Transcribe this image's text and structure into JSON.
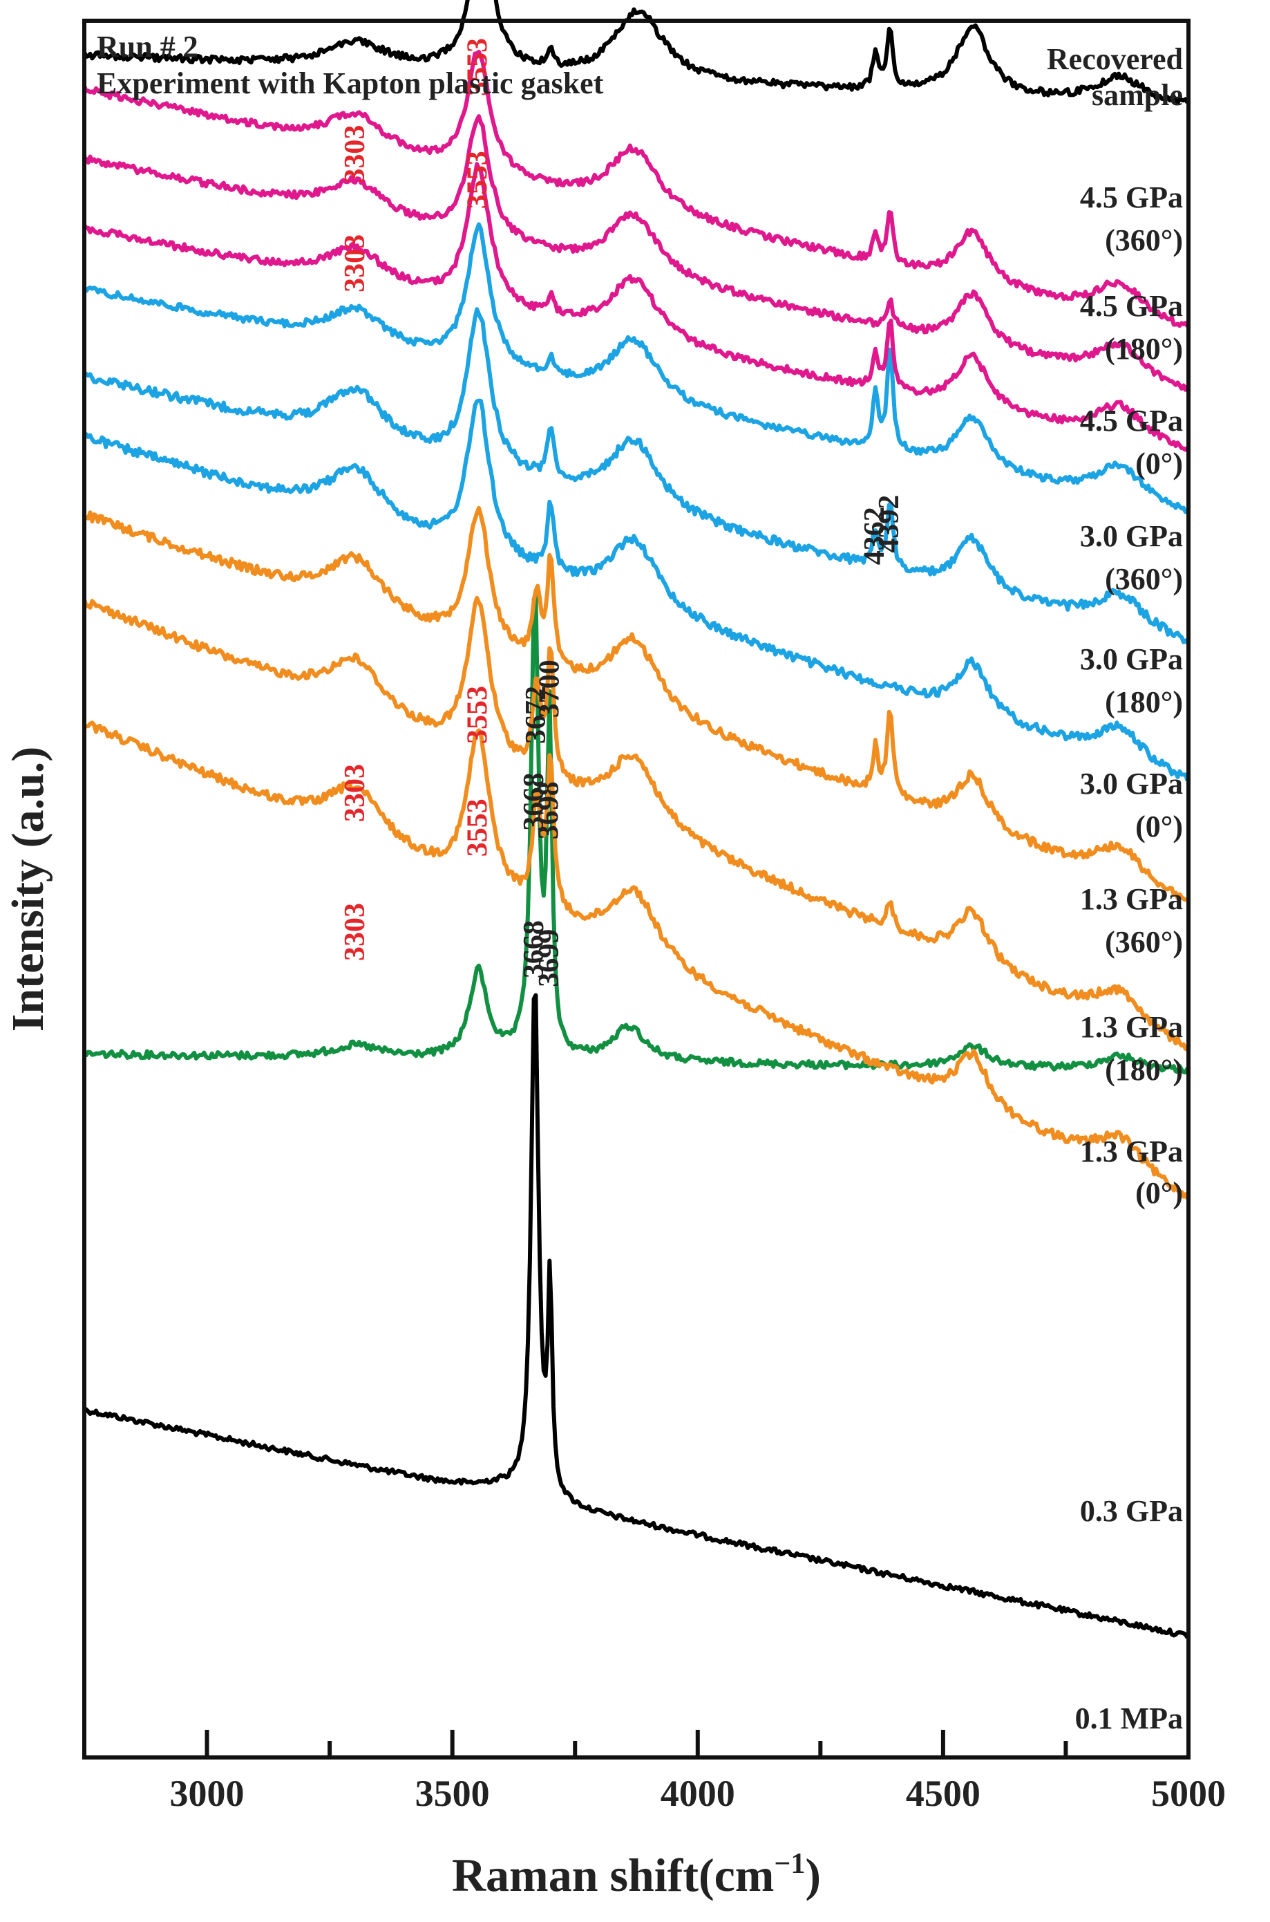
{
  "chart_data": {
    "type": "line",
    "title": "Run # 2",
    "subtitle": "Experiment with Kapton plastic gasket",
    "xlabel": "Raman shift(cm",
    "xlabel_sup": "−1",
    "xlabel_end": ")",
    "ylabel": "Intensity (a.u.)",
    "xlim": [
      2750,
      5000
    ],
    "xticks": [
      3000,
      3500,
      4000,
      4500,
      5000
    ],
    "colors": {
      "black": "#000000",
      "green": "#129042",
      "orange": "#f18d1e",
      "blue": "#1ba3e3",
      "magenta": "#e0188e",
      "red_label": "#e4262a",
      "black_label": "#222222"
    },
    "series": [
      {
        "name": "0.1 MPa",
        "label_lines": [
          "0.1 MPa"
        ],
        "color": "black",
        "start": 0.8,
        "end": 0.93,
        "base": 0.48,
        "noise": 0.003,
        "peaks": [
          [
            3668,
            0.3,
            9
          ],
          [
            3699,
            0.12,
            5
          ],
          [
            3600,
            0.005,
            60
          ]
        ]
      },
      {
        "name": "0.3 GPa",
        "label_lines": [
          "0.3 GPa"
        ],
        "color": "green",
        "start": 0.595,
        "end": 0.605,
        "base": 0.575,
        "noise": 0.004,
        "peaks": [
          [
            3553,
            0.05,
            22
          ],
          [
            3668,
            0.27,
            9
          ],
          [
            3698,
            0.19,
            6
          ],
          [
            3860,
            0.02,
            40
          ],
          [
            3303,
            0.007,
            60
          ],
          [
            4560,
            0.012,
            40
          ],
          [
            4860,
            0.008,
            50
          ]
        ]
      },
      {
        "name": "1.3 GPa (0°)",
        "label_lines": [
          "1.3 GPa",
          "(0°)"
        ],
        "color": "orange",
        "start": 0.405,
        "end": 0.68,
        "base": 0.455,
        "noise": 0.005,
        "peaks": [
          [
            3553,
            0.09,
            28
          ],
          [
            3672,
            0.06,
            10
          ],
          [
            3700,
            0.085,
            8
          ],
          [
            3303,
            0.03,
            70
          ],
          [
            3870,
            0.04,
            60
          ],
          [
            4560,
            0.03,
            40
          ],
          [
            4860,
            0.02,
            60
          ]
        ]
      },
      {
        "name": "1.3 GPa (180°)",
        "label_lines": [
          "1.3 GPa",
          "(180°)"
        ],
        "color": "orange",
        "start": 0.335,
        "end": 0.595,
        "base": 0.38,
        "noise": 0.005,
        "peaks": [
          [
            3553,
            0.09,
            28
          ],
          [
            3672,
            0.05,
            10
          ],
          [
            3700,
            0.07,
            8
          ],
          [
            3303,
            0.03,
            70
          ],
          [
            3870,
            0.04,
            60
          ],
          [
            4560,
            0.03,
            40
          ],
          [
            4860,
            0.02,
            60
          ],
          [
            4392,
            0.015,
            8
          ]
        ]
      },
      {
        "name": "1.3 GPa (360°)",
        "label_lines": [
          "1.3 GPa",
          "(360°)"
        ],
        "color": "orange",
        "start": 0.285,
        "end": 0.51,
        "base": 0.33,
        "noise": 0.005,
        "peaks": [
          [
            3553,
            0.08,
            28
          ],
          [
            3672,
            0.04,
            10
          ],
          [
            3700,
            0.06,
            8
          ],
          [
            3303,
            0.03,
            70
          ],
          [
            3870,
            0.04,
            60
          ],
          [
            4362,
            0.025,
            7
          ],
          [
            4392,
            0.05,
            7
          ],
          [
            4560,
            0.03,
            40
          ],
          [
            4860,
            0.02,
            60
          ]
        ]
      },
      {
        "name": "3.0 GPa (0°)",
        "label_lines": [
          "3.0 GPa",
          "(0°)"
        ],
        "color": "blue",
        "start": 0.24,
        "end": 0.44,
        "base": 0.28,
        "noise": 0.005,
        "peaks": [
          [
            3553,
            0.09,
            28
          ],
          [
            3700,
            0.04,
            8
          ],
          [
            3303,
            0.03,
            70
          ],
          [
            3870,
            0.04,
            60
          ],
          [
            4560,
            0.03,
            40
          ],
          [
            4860,
            0.02,
            60
          ]
        ]
      },
      {
        "name": "3.0 GPa (180°)",
        "label_lines": [
          "3.0 GPa",
          "(180°)"
        ],
        "color": "blue",
        "start": 0.205,
        "end": 0.36,
        "base": 0.245,
        "noise": 0.005,
        "peaks": [
          [
            3553,
            0.09,
            28
          ],
          [
            3700,
            0.03,
            8
          ],
          [
            3303,
            0.03,
            70
          ],
          [
            3870,
            0.04,
            60
          ],
          [
            4362,
            0.02,
            7
          ],
          [
            4392,
            0.04,
            7
          ],
          [
            4560,
            0.03,
            40
          ],
          [
            4860,
            0.02,
            60
          ]
        ]
      },
      {
        "name": "3.0 GPa (360°)",
        "label_lines": [
          "3.0 GPa",
          "(360°)"
        ],
        "color": "blue",
        "start": 0.155,
        "end": 0.285,
        "base": 0.195,
        "noise": 0.004,
        "peaks": [
          [
            3553,
            0.08,
            28
          ],
          [
            3700,
            0.01,
            8
          ],
          [
            3303,
            0.02,
            70
          ],
          [
            3870,
            0.035,
            60
          ],
          [
            4362,
            0.03,
            7
          ],
          [
            4392,
            0.06,
            7
          ],
          [
            4560,
            0.03,
            40
          ],
          [
            4860,
            0.02,
            60
          ]
        ]
      },
      {
        "name": "4.5 GPa (0°)",
        "label_lines": [
          "4.5 GPa",
          "(0°)"
        ],
        "color": "magenta",
        "start": 0.12,
        "end": 0.25,
        "base": 0.155,
        "noise": 0.004,
        "peaks": [
          [
            3553,
            0.08,
            28
          ],
          [
            3700,
            0.01,
            8
          ],
          [
            3303,
            0.02,
            70
          ],
          [
            3870,
            0.035,
            60
          ],
          [
            4362,
            0.02,
            7
          ],
          [
            4392,
            0.04,
            7
          ],
          [
            4560,
            0.03,
            40
          ],
          [
            4860,
            0.02,
            60
          ]
        ]
      },
      {
        "name": "4.5 GPa (180°)",
        "label_lines": [
          "4.5 GPa",
          "(180°)"
        ],
        "color": "magenta",
        "start": 0.08,
        "end": 0.215,
        "base": 0.115,
        "noise": 0.004,
        "peaks": [
          [
            3553,
            0.07,
            28
          ],
          [
            3303,
            0.02,
            70
          ],
          [
            3870,
            0.035,
            60
          ],
          [
            4392,
            0.015,
            7
          ],
          [
            4560,
            0.03,
            40
          ],
          [
            4860,
            0.02,
            60
          ]
        ]
      },
      {
        "name": "4.5 GPa (360°)",
        "label_lines": [
          "4.5 GPa",
          "(360°)"
        ],
        "color": "magenta",
        "start": 0.04,
        "end": 0.18,
        "base": 0.08,
        "noise": 0.004,
        "peaks": [
          [
            3553,
            0.07,
            28
          ],
          [
            3303,
            0.02,
            70
          ],
          [
            3870,
            0.035,
            60
          ],
          [
            4362,
            0.015,
            7
          ],
          [
            4392,
            0.03,
            7
          ],
          [
            4560,
            0.03,
            40
          ],
          [
            4860,
            0.02,
            60
          ]
        ]
      },
      {
        "name": "Recovered sample",
        "label_lines": [
          "Recovered",
          "sample"
        ],
        "color": "black",
        "start": 0.02,
        "end": 0.05,
        "base": 0.045,
        "noise": 0.004,
        "peaks": [
          [
            3560,
            0.09,
            26
          ],
          [
            3700,
            0.01,
            8
          ],
          [
            3303,
            0.015,
            70
          ],
          [
            3880,
            0.04,
            60
          ],
          [
            4362,
            0.02,
            7
          ],
          [
            4392,
            0.035,
            7
          ],
          [
            4560,
            0.04,
            40
          ],
          [
            4860,
            0.015,
            60
          ]
        ]
      }
    ],
    "peak_labels": [
      {
        "text": "3303",
        "x": 3303,
        "y": 0.052,
        "color": "red_label"
      },
      {
        "text": "3553",
        "x": 3553,
        "y": 0.002,
        "color": "red_label"
      },
      {
        "text": "3553",
        "x": 3553,
        "y": 0.067,
        "color": "red_label"
      },
      {
        "text": "3303",
        "x": 3303,
        "y": 0.115,
        "color": "red_label"
      },
      {
        "text": "4362",
        "x": 4362,
        "y": 0.272,
        "color": "black_label"
      },
      {
        "text": "4392",
        "x": 4392,
        "y": 0.265,
        "color": "black_label"
      },
      {
        "text": "3553",
        "x": 3553,
        "y": 0.375,
        "color": "red_label"
      },
      {
        "text": "3672",
        "x": 3672,
        "y": 0.375,
        "color": "black_label"
      },
      {
        "text": "3700",
        "x": 3700,
        "y": 0.36,
        "color": "black_label"
      },
      {
        "text": "3303",
        "x": 3303,
        "y": 0.42,
        "color": "red_label"
      },
      {
        "text": "3668",
        "x": 3668,
        "y": 0.425,
        "color": "black_label"
      },
      {
        "text": "3698",
        "x": 3698,
        "y": 0.43,
        "color": "black_label"
      },
      {
        "text": "3553",
        "x": 3553,
        "y": 0.44,
        "color": "red_label"
      },
      {
        "text": "3303",
        "x": 3303,
        "y": 0.5,
        "color": "red_label"
      },
      {
        "text": "3668",
        "x": 3668,
        "y": 0.51,
        "color": "black_label"
      },
      {
        "text": "3699",
        "x": 3699,
        "y": 0.515,
        "color": "black_label"
      }
    ]
  }
}
